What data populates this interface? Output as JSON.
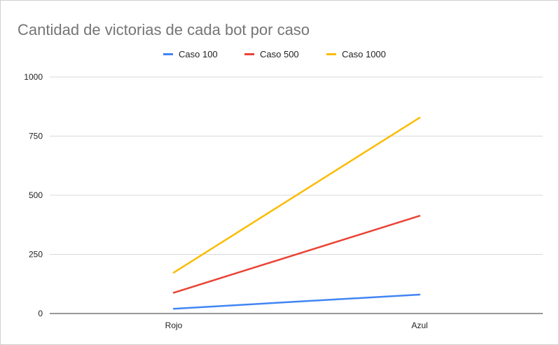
{
  "chart_data": {
    "type": "line",
    "title": "Cantidad de victorias de cada bot por caso",
    "xlabel": "",
    "ylabel": "",
    "categories": [
      "Rojo",
      "Azul"
    ],
    "ylim": [
      0,
      1000
    ],
    "yticks": [
      0,
      250,
      500,
      750,
      1000
    ],
    "grid": true,
    "legend_position": "top",
    "series": [
      {
        "name": "Caso 100",
        "color": "#4285f4",
        "values": [
          20,
          80
        ]
      },
      {
        "name": "Caso 500",
        "color": "#ea4335",
        "values": [
          88,
          413
        ]
      },
      {
        "name": "Caso 1000",
        "color": "#fbbc04",
        "values": [
          173,
          828
        ]
      }
    ]
  }
}
